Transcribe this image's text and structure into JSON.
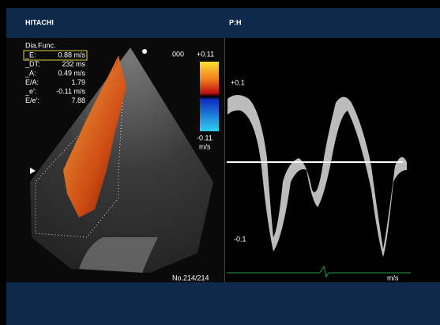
{
  "header": {
    "left_title": "HITACHI",
    "right_title": "P:H"
  },
  "measurements": {
    "title": "Dia.Func.",
    "rows": [
      [
        "_E:",
        "0.88 m/s"
      ],
      [
        "_DT:",
        "232 ms"
      ],
      [
        "_A:",
        "0.49 m/s"
      ],
      [
        "E/A:",
        "1.79"
      ],
      [
        "_e':",
        "-0.11 m/s"
      ],
      [
        "E/e':",
        "7.88"
      ]
    ]
  },
  "color_bar": {
    "code": "000",
    "top": "+0.11",
    "bottom": "-0.11",
    "unit": "m/s"
  },
  "frame_counter": "No.214/214",
  "doppler": {
    "top": "+0.1",
    "bottom": "-0.1",
    "unit": "m/s"
  }
}
